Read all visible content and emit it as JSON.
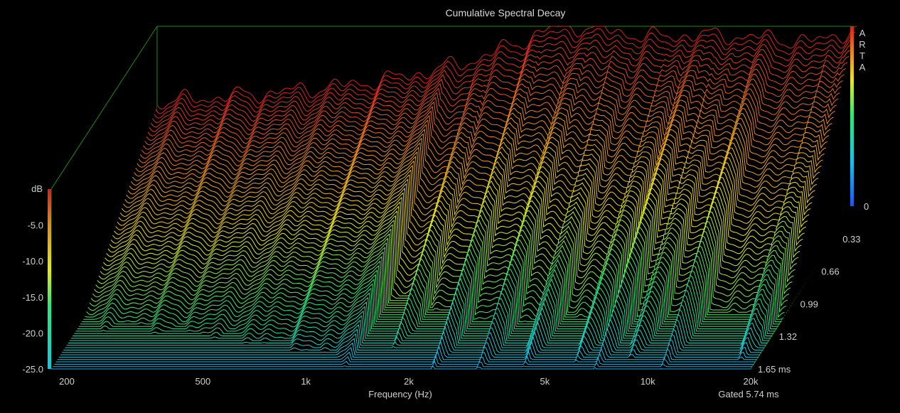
{
  "chart_data": {
    "type": "waterfall-3d",
    "title": "Cumulative Spectral Decay",
    "xlabel": "Frequency (Hz)",
    "x_scale": "log",
    "xlim": [
      180,
      20000
    ],
    "x_ticks": [
      "200",
      "500",
      "1k",
      "2k",
      "5k",
      "10k",
      "20k"
    ],
    "x_tick_values": [
      200,
      500,
      1000,
      2000,
      5000,
      10000,
      20000
    ],
    "zlabel": "dB",
    "zlim": [
      -25,
      0
    ],
    "z_ticks": [
      "-5.0",
      "-10.0",
      "-15.0",
      "-20.0",
      "-25.0"
    ],
    "z_tick_values": [
      -5,
      -10,
      -15,
      -20,
      -25
    ],
    "time_unit": "ms",
    "time_range": [
      0,
      1.65
    ],
    "time_ticks": [
      "0",
      "0.33",
      "0.66",
      "0.99",
      "1.32",
      "1.65 ms"
    ],
    "time_tick_values": [
      0,
      0.33,
      0.66,
      0.99,
      1.32,
      1.65
    ],
    "slice_count": 70,
    "gated_note": "Gated 5.74 ms",
    "brand_letters": [
      "A",
      "R",
      "T",
      "A"
    ],
    "initial_response_db": [
      {
        "f": 180,
        "db": -10.5
      },
      {
        "f": 250,
        "db": -10.0
      },
      {
        "f": 400,
        "db": -9.2
      },
      {
        "f": 700,
        "db": -8.0
      },
      {
        "f": 1000,
        "db": -6.8
      },
      {
        "f": 1500,
        "db": -4.8
      },
      {
        "f": 2000,
        "db": -2.5
      },
      {
        "f": 2500,
        "db": -0.5
      },
      {
        "f": 3000,
        "db": 0.0
      },
      {
        "f": 4000,
        "db": -0.8
      },
      {
        "f": 5000,
        "db": -1.5
      },
      {
        "f": 7000,
        "db": -1.2
      },
      {
        "f": 10000,
        "db": -1.5
      },
      {
        "f": 15000,
        "db": -2.2
      },
      {
        "f": 18000,
        "db": -1.0
      },
      {
        "f": 20000,
        "db": -0.5
      }
    ],
    "resonances_hz": [
      1650,
      2350,
      3200,
      4300,
      6000,
      7000,
      8500,
      11000,
      18000
    ],
    "colors": {
      "background": "#000000",
      "frame": "#1c8a1c",
      "text": "#cfcfcf",
      "colormap": [
        "#1f56e8",
        "#16c4e8",
        "#2ee87a",
        "#e8e81e",
        "#e88a1e",
        "#d81e1e"
      ]
    }
  }
}
